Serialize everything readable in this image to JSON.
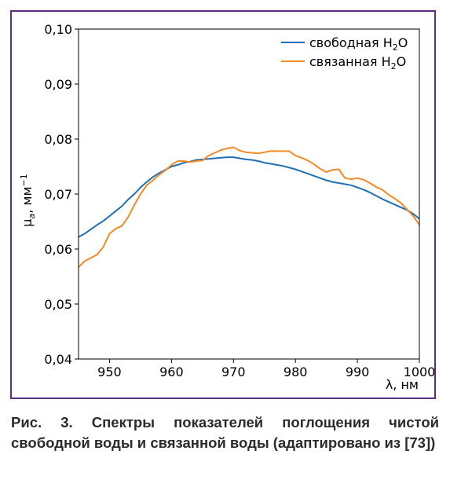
{
  "chart_data": {
    "type": "line",
    "xlabel": "λ, нм",
    "ylabel_main": "μ",
    "ylabel_sub": "a",
    "ylabel_rest": ", мм",
    "ylabel_sup": "−1",
    "xlim": [
      945,
      1000
    ],
    "ylim": [
      0.04,
      0.1
    ],
    "x_ticks": [
      950,
      960,
      970,
      980,
      990,
      1000
    ],
    "x_tick_labels": [
      "950",
      "960",
      "970",
      "980",
      "990",
      "1000"
    ],
    "y_ticks": [
      0.04,
      0.05,
      0.06,
      0.07,
      0.08,
      0.09,
      0.1
    ],
    "y_tick_labels": [
      "0,04",
      "0,05",
      "0,06",
      "0,07",
      "0,08",
      "0,09",
      "0,10"
    ],
    "grid": false,
    "legend_position": "top-right",
    "series": [
      {
        "name_prefix": "свободная H",
        "name_sub": "2",
        "name_suffix": "O",
        "color": "#1f6fb4",
        "x": [
          945,
          946,
          947,
          948,
          949,
          950,
          951,
          952,
          953,
          954,
          955,
          956,
          957,
          958,
          959,
          960,
          961,
          962,
          963,
          964,
          965,
          966,
          967,
          968,
          969,
          970,
          971,
          972,
          973,
          974,
          975,
          976,
          977,
          978,
          979,
          980,
          981,
          982,
          983,
          984,
          985,
          986,
          987,
          988,
          989,
          990,
          991,
          992,
          993,
          994,
          995,
          996,
          997,
          998,
          999,
          1000
        ],
        "y": [
          0.0622,
          0.0628,
          0.0636,
          0.0644,
          0.0651,
          0.066,
          0.0669,
          0.0678,
          0.069,
          0.07,
          0.0712,
          0.0722,
          0.0731,
          0.0738,
          0.0744,
          0.075,
          0.0753,
          0.0757,
          0.0759,
          0.0762,
          0.0763,
          0.0764,
          0.0765,
          0.0766,
          0.0767,
          0.0767,
          0.0765,
          0.0763,
          0.0762,
          0.076,
          0.0757,
          0.0755,
          0.0753,
          0.0751,
          0.0748,
          0.0745,
          0.0741,
          0.0737,
          0.0733,
          0.0729,
          0.0725,
          0.0722,
          0.072,
          0.0718,
          0.0716,
          0.0712,
          0.0708,
          0.0703,
          0.0697,
          0.0691,
          0.0686,
          0.0681,
          0.0676,
          0.0671,
          0.0664,
          0.0655
        ]
      },
      {
        "name_prefix": "связанная H",
        "name_sub": "2",
        "name_suffix": "O",
        "color": "#f28a26",
        "x": [
          945,
          946,
          947,
          948,
          949,
          949.5,
          950,
          951,
          952,
          953,
          954,
          955,
          956,
          957,
          958,
          959,
          960,
          961,
          962,
          963,
          964,
          965,
          966,
          967,
          968,
          969,
          970,
          971,
          972,
          973,
          974,
          975,
          976,
          977,
          978,
          979,
          980,
          981,
          982,
          983,
          984,
          985,
          986,
          987,
          988,
          989,
          990,
          991,
          992,
          993,
          994,
          995,
          996,
          997,
          998,
          999,
          1000
        ],
        "y": [
          0.0567,
          0.0578,
          0.0584,
          0.059,
          0.0604,
          0.0616,
          0.0628,
          0.0637,
          0.0642,
          0.0658,
          0.068,
          0.07,
          0.0716,
          0.0725,
          0.0735,
          0.0743,
          0.0753,
          0.076,
          0.076,
          0.0758,
          0.076,
          0.0761,
          0.077,
          0.0775,
          0.078,
          0.0783,
          0.0785,
          0.0779,
          0.0776,
          0.0775,
          0.0774,
          0.0776,
          0.0778,
          0.0778,
          0.0778,
          0.0778,
          0.077,
          0.0766,
          0.0761,
          0.0754,
          0.0746,
          0.074,
          0.0744,
          0.0745,
          0.0729,
          0.0727,
          0.0729,
          0.0726,
          0.072,
          0.0713,
          0.0708,
          0.0699,
          0.0692,
          0.0684,
          0.0672,
          0.066,
          0.0644
        ]
      }
    ]
  },
  "caption": {
    "text": "Рис. 3. Спектры показателей поглощения чистой свободной воды и связанной воды (адаптировано из [73])"
  }
}
